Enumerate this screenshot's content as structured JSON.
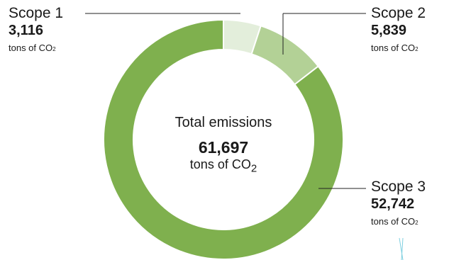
{
  "chart_data": {
    "type": "pie",
    "style": "donut",
    "center": {
      "title": "Total emissions",
      "value": "61,697",
      "unit": "tons of CO",
      "unit_subscript": "2"
    },
    "slices": [
      {
        "name": "Scope 1",
        "value": 3116,
        "value_label": "3,116",
        "unit": "tons of CO",
        "unit_subscript": "2",
        "color": "#e3eedb"
      },
      {
        "name": "Scope 2",
        "value": 5839,
        "value_label": "5,839",
        "unit": "tons of CO",
        "unit_subscript": "2",
        "color": "#b3d196"
      },
      {
        "name": "Scope 3",
        "value": 52742,
        "value_label": "52,742",
        "unit": "tons of CO",
        "unit_subscript": "2",
        "color": "#7fb04e"
      }
    ]
  }
}
